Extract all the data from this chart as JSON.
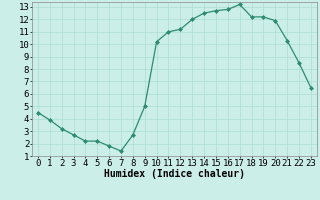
{
  "x": [
    0,
    1,
    2,
    3,
    4,
    5,
    6,
    7,
    8,
    9,
    10,
    11,
    12,
    13,
    14,
    15,
    16,
    17,
    18,
    19,
    20,
    21,
    22,
    23
  ],
  "y": [
    4.5,
    3.9,
    3.2,
    2.7,
    2.2,
    2.2,
    1.8,
    1.4,
    2.7,
    5.0,
    10.2,
    11.0,
    11.2,
    12.0,
    12.5,
    12.7,
    12.8,
    13.2,
    12.2,
    12.2,
    11.9,
    10.3,
    8.5,
    6.5
  ],
  "xlabel": "Humidex (Indice chaleur)",
  "ylabel": "",
  "xlim": [
    -0.5,
    23.5
  ],
  "ylim": [
    1,
    13.4
  ],
  "yticks": [
    1,
    2,
    3,
    4,
    5,
    6,
    7,
    8,
    9,
    10,
    11,
    12,
    13
  ],
  "xticks": [
    0,
    1,
    2,
    3,
    4,
    5,
    6,
    7,
    8,
    9,
    10,
    11,
    12,
    13,
    14,
    15,
    16,
    17,
    18,
    19,
    20,
    21,
    22,
    23
  ],
  "line_color": "#2d8c6e",
  "marker_color": "#2d8c6e",
  "bg_color": "#cceee8",
  "grid_color": "#aaddcc",
  "xlabel_fontsize": 7,
  "tick_fontsize": 6.5
}
